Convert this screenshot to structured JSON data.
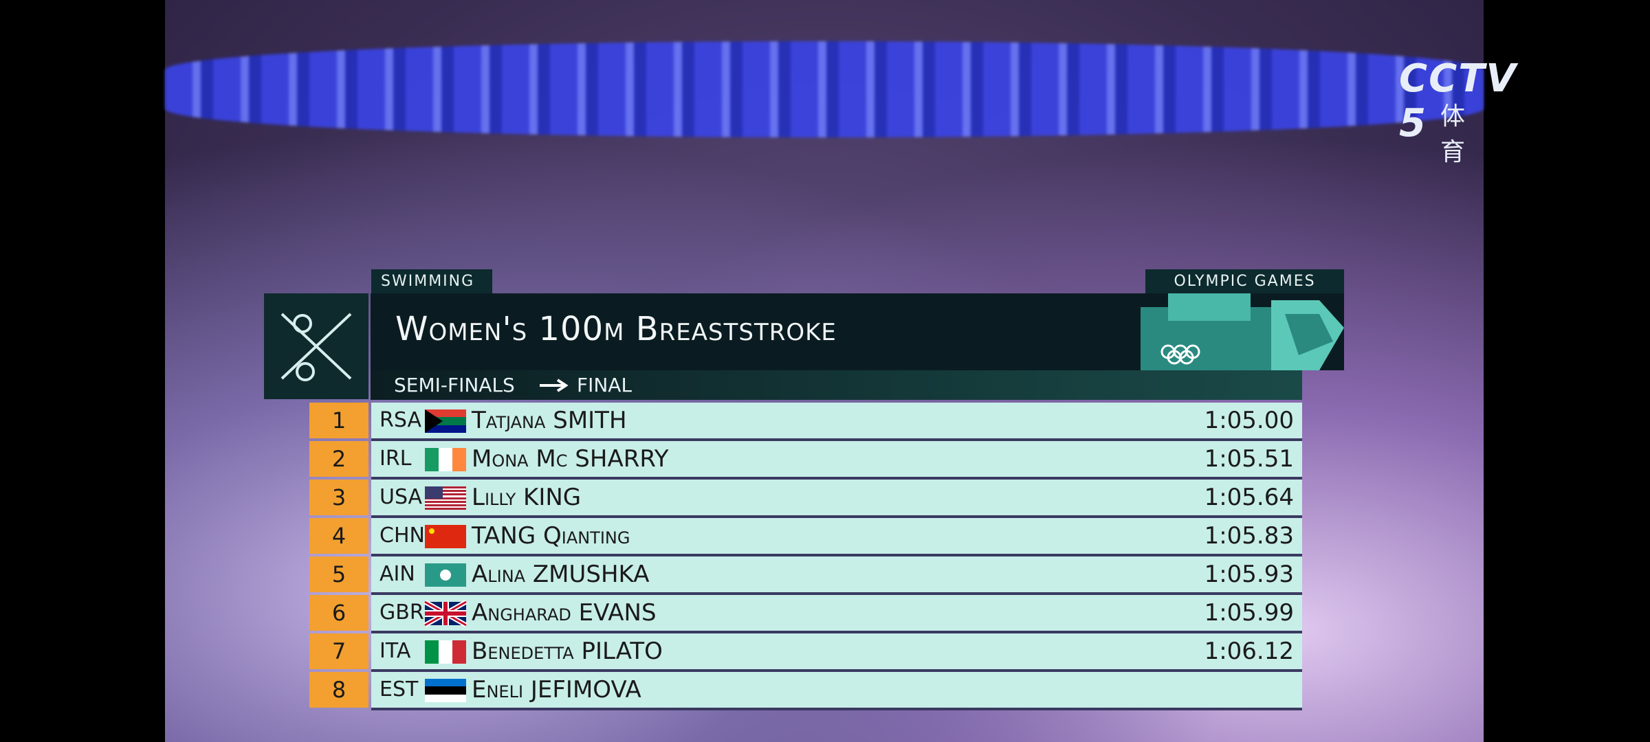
{
  "logo": {
    "channel": "CCTV 5",
    "subtitle": "体育"
  },
  "header": {
    "sport": "SWIMMING",
    "games": "OLYMPIC GAMES",
    "title": "Women's 100m Breaststroke",
    "stage": "SEMI-FINALS",
    "next": "FINAL"
  },
  "table": {
    "rows": [
      [
        "1",
        "RSA",
        "Tatjana SMITH",
        "1:05.00"
      ],
      [
        "2",
        "IRL",
        "Mona Mc SHARRY",
        "1:05.51"
      ],
      [
        "3",
        "USA",
        "Lilly KING",
        "1:05.64"
      ],
      [
        "4",
        "CHN",
        "TANG Qianting",
        "1:05.83"
      ],
      [
        "5",
        "AIN",
        "Alina ZMUSHKA",
        "1:05.93"
      ],
      [
        "6",
        "GBR",
        "Angharad EVANS",
        "1:05.99"
      ],
      [
        "7",
        "ITA",
        "Benedetta PILATO",
        "1:06.12"
      ],
      [
        "8",
        "EST",
        "Eneli JEFIMOVA",
        null
      ]
    ]
  }
}
